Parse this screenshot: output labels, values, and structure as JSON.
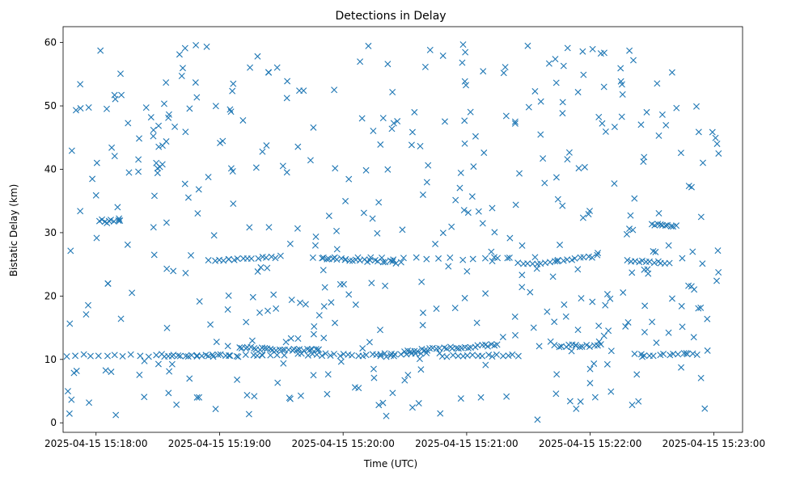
{
  "chart_data": {
    "type": "scatter",
    "title": "Detections in Delay",
    "xlabel": "Time (UTC)",
    "ylabel": "Bistatic Delay (km)",
    "marker": "x",
    "color": "#1f77b4",
    "x_unit": "seconds since 2025-04-15 15:18:00",
    "xlim": [
      -16,
      314
    ],
    "ylim": [
      -1.5,
      62.5
    ],
    "x_ticks": [
      {
        "value": 0,
        "label": "2025-04-15 15:18:00"
      },
      {
        "value": 60,
        "label": "2025-04-15 15:19:00"
      },
      {
        "value": 120,
        "label": "2025-04-15 15:20:00"
      },
      {
        "value": 180,
        "label": "2025-04-15 15:21:00"
      },
      {
        "value": 240,
        "label": "2025-04-15 15:22:00"
      },
      {
        "value": 300,
        "label": "2025-04-15 15:23:00"
      }
    ],
    "y_ticks": [
      {
        "value": 0,
        "label": "0"
      },
      {
        "value": 10,
        "label": "10"
      },
      {
        "value": 20,
        "label": "20"
      },
      {
        "value": 30,
        "label": "30"
      },
      {
        "value": 40,
        "label": "40"
      },
      {
        "value": 50,
        "label": "50"
      },
      {
        "value": 60,
        "label": "60"
      }
    ],
    "tracks": [
      {
        "name": "track-1",
        "x_start": -14,
        "x_end": 92,
        "y_start": 10.6,
        "y_end": 10.6,
        "count": 28
      },
      {
        "name": "track-2",
        "x_start": 32,
        "x_end": 68,
        "y_start": 10.7,
        "y_end": 10.5,
        "count": 14
      },
      {
        "name": "track-3",
        "x_start": 92,
        "x_end": 108,
        "y_start": 11.6,
        "y_end": 11.4,
        "count": 12
      },
      {
        "name": "track-4",
        "x_start": 98,
        "x_end": 145,
        "y_start": 10.8,
        "y_end": 10.6,
        "count": 22
      },
      {
        "name": "track-5",
        "x_start": 105,
        "x_end": 200,
        "y_start": 26.0,
        "y_end": 25.8,
        "count": 18
      },
      {
        "name": "track-6",
        "x_start": 110,
        "x_end": 148,
        "y_start": 26.0,
        "y_end": 25.3,
        "count": 22
      },
      {
        "name": "track-7",
        "x_start": 150,
        "x_end": 195,
        "y_start": 11.3,
        "y_end": 12.3,
        "count": 30
      },
      {
        "name": "track-8",
        "x_start": 138,
        "x_end": 160,
        "y_start": 10.8,
        "y_end": 11.0,
        "count": 10
      },
      {
        "name": "track-9",
        "x_start": 168,
        "x_end": 205,
        "y_start": 10.6,
        "y_end": 10.6,
        "count": 16
      },
      {
        "name": "track-10",
        "x_start": 2,
        "x_end": 12,
        "y_start": 31.9,
        "y_end": 31.9,
        "count": 8
      },
      {
        "name": "track-11",
        "x_start": 55,
        "x_end": 90,
        "y_start": 25.6,
        "y_end": 26.2,
        "count": 16
      },
      {
        "name": "track-12",
        "x_start": 70,
        "x_end": 90,
        "y_start": 11.9,
        "y_end": 11.5,
        "count": 16
      },
      {
        "name": "track-13",
        "x_start": 208,
        "x_end": 243,
        "y_start": 25.0,
        "y_end": 26.3,
        "count": 18
      },
      {
        "name": "track-14",
        "x_start": 223,
        "x_end": 245,
        "y_start": 12.1,
        "y_end": 12.2,
        "count": 14
      },
      {
        "name": "track-15",
        "x_start": 258,
        "x_end": 278,
        "y_start": 25.7,
        "y_end": 25.2,
        "count": 12
      },
      {
        "name": "track-16",
        "x_start": 262,
        "x_end": 292,
        "y_start": 10.7,
        "y_end": 10.8,
        "count": 14
      },
      {
        "name": "track-17",
        "x_start": 270,
        "x_end": 282,
        "y_start": 31.3,
        "y_end": 31.1,
        "count": 10
      }
    ],
    "noise_points": {
      "count": 450,
      "x_range": [
        -14,
        303
      ],
      "y_range": [
        0.5,
        60
      ],
      "distribution": "approximately uniform"
    }
  }
}
